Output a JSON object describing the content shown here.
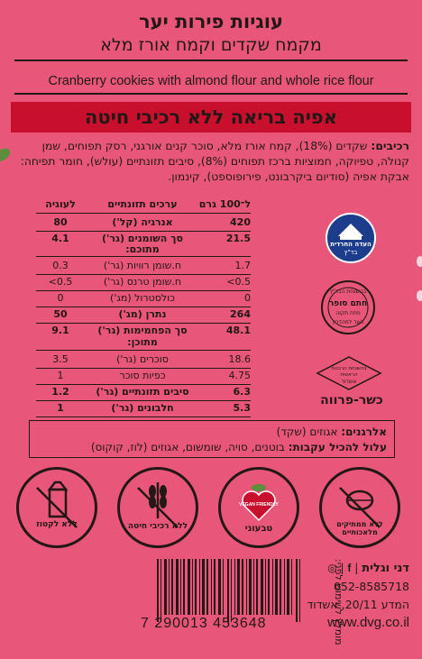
{
  "product": {
    "title": "עוגיות פירות יער",
    "subtitle": "מקמח שקדים וקמח אורז מלא",
    "english_name": "Cranberry cookies with almond flour and whole rice flour",
    "banner": "אפיה בריאה ללא רכיבי חיטה"
  },
  "ingredients": {
    "label": "רכיבים:",
    "text": "שקדים (18%), קמח אורז מלא, סוכר קנים אורגני, רסק תפוחים, שמן קנולה, טפיוקה, חמוציות ברכז תפוחים (8%), סיבים תזונתיים (עולש), חומר תפיחה: אבקת אפיה (סודיום ביקרבונט, פירופוספט), קינמון."
  },
  "nutrition": {
    "headers": {
      "per100": "ל־100 גרם",
      "name": "ערכים תזונתיים",
      "serving": "לעוגיה"
    },
    "rows": [
      {
        "per100": "420",
        "name": "אנרגיה (קל')",
        "serving": "80",
        "bold": true
      },
      {
        "per100": "21.5",
        "name": "סך השומנים (גר')",
        "name2": "מתוכם:",
        "serving": "4.1",
        "bold": true
      },
      {
        "per100": "1.7",
        "name": "ח.שומן רוויות (גר')",
        "serving": "0.3",
        "bold": false
      },
      {
        "per100": "0.5>",
        "name": "ח.שומן טרנס (גר')",
        "serving": "0.5>",
        "bold": false
      },
      {
        "per100": "0",
        "name": "כולסטרול (מג')",
        "serving": "0",
        "bold": false
      },
      {
        "per100": "264",
        "name": "נתרן (מג')",
        "serving": "50",
        "bold": true
      },
      {
        "per100": "48.1",
        "name": "סך הפחמימות (גר')",
        "name2": "מתוכן:",
        "serving": "9.1",
        "bold": true
      },
      {
        "per100": "18.6",
        "name": "סוכרים (גר')",
        "serving": "3.5",
        "bold": false
      },
      {
        "per100": "4.75",
        "name": "כפיות סוכר",
        "serving": "1",
        "bold": false
      },
      {
        "per100": "6.3",
        "name": "סיבים תזונתיים (גר')",
        "serving": "1.2",
        "bold": true
      },
      {
        "per100": "5.3",
        "name": "חלבונים (גר')",
        "serving": "1",
        "bold": true
      }
    ]
  },
  "kashrut": {
    "logo1_text": "בד\"ץ",
    "logo1_sub": "העדה החרדית",
    "logo2_top": "בהשגחת הבד\"ץ",
    "logo2_mid": "חתם סופר",
    "logo2_city": "פתח תקוה",
    "logo2_bottom": "כשר למהדרין",
    "logo3_text": "בהשגחת הרבנות הראשית",
    "logo3_sub": "אשדוד",
    "parve": "כשר-פרווה"
  },
  "allergens": {
    "label": "אלרגנים:",
    "text": "אגוזים (שקד)",
    "may_contain_label": "עלול להכיל עקבות:",
    "may_contain_text": "בוטנים, סויה, שומשום, אגוזים (לוז, קוקוס)"
  },
  "badges": [
    {
      "label": "ללא לקטוז",
      "icon": "milk-carton-crossed-icon"
    },
    {
      "label": "ללא רכיבי חיטה",
      "icon": "wheat-crossed-icon"
    },
    {
      "label": "טבעוני",
      "icon": "vegan-friendly-icon",
      "badge_text": "VEGAN FRIENDLY"
    },
    {
      "label": "ללא ממתיקים מלאכותיים",
      "icon": "sweetener-crossed-icon"
    }
  ],
  "manufacturer": {
    "brand": "דני וגלית",
    "phone": "052-8585718",
    "address": "המדע 20/11, אשדוד",
    "website": "www.dvg.co.il"
  },
  "barcode": {
    "number": "7 290013 453648"
  },
  "best_before": {
    "label": "מומלץ לשימוש לפני:"
  },
  "colors": {
    "background": "#e8567a",
    "banner": "#c8102e",
    "ink": "#231815"
  }
}
